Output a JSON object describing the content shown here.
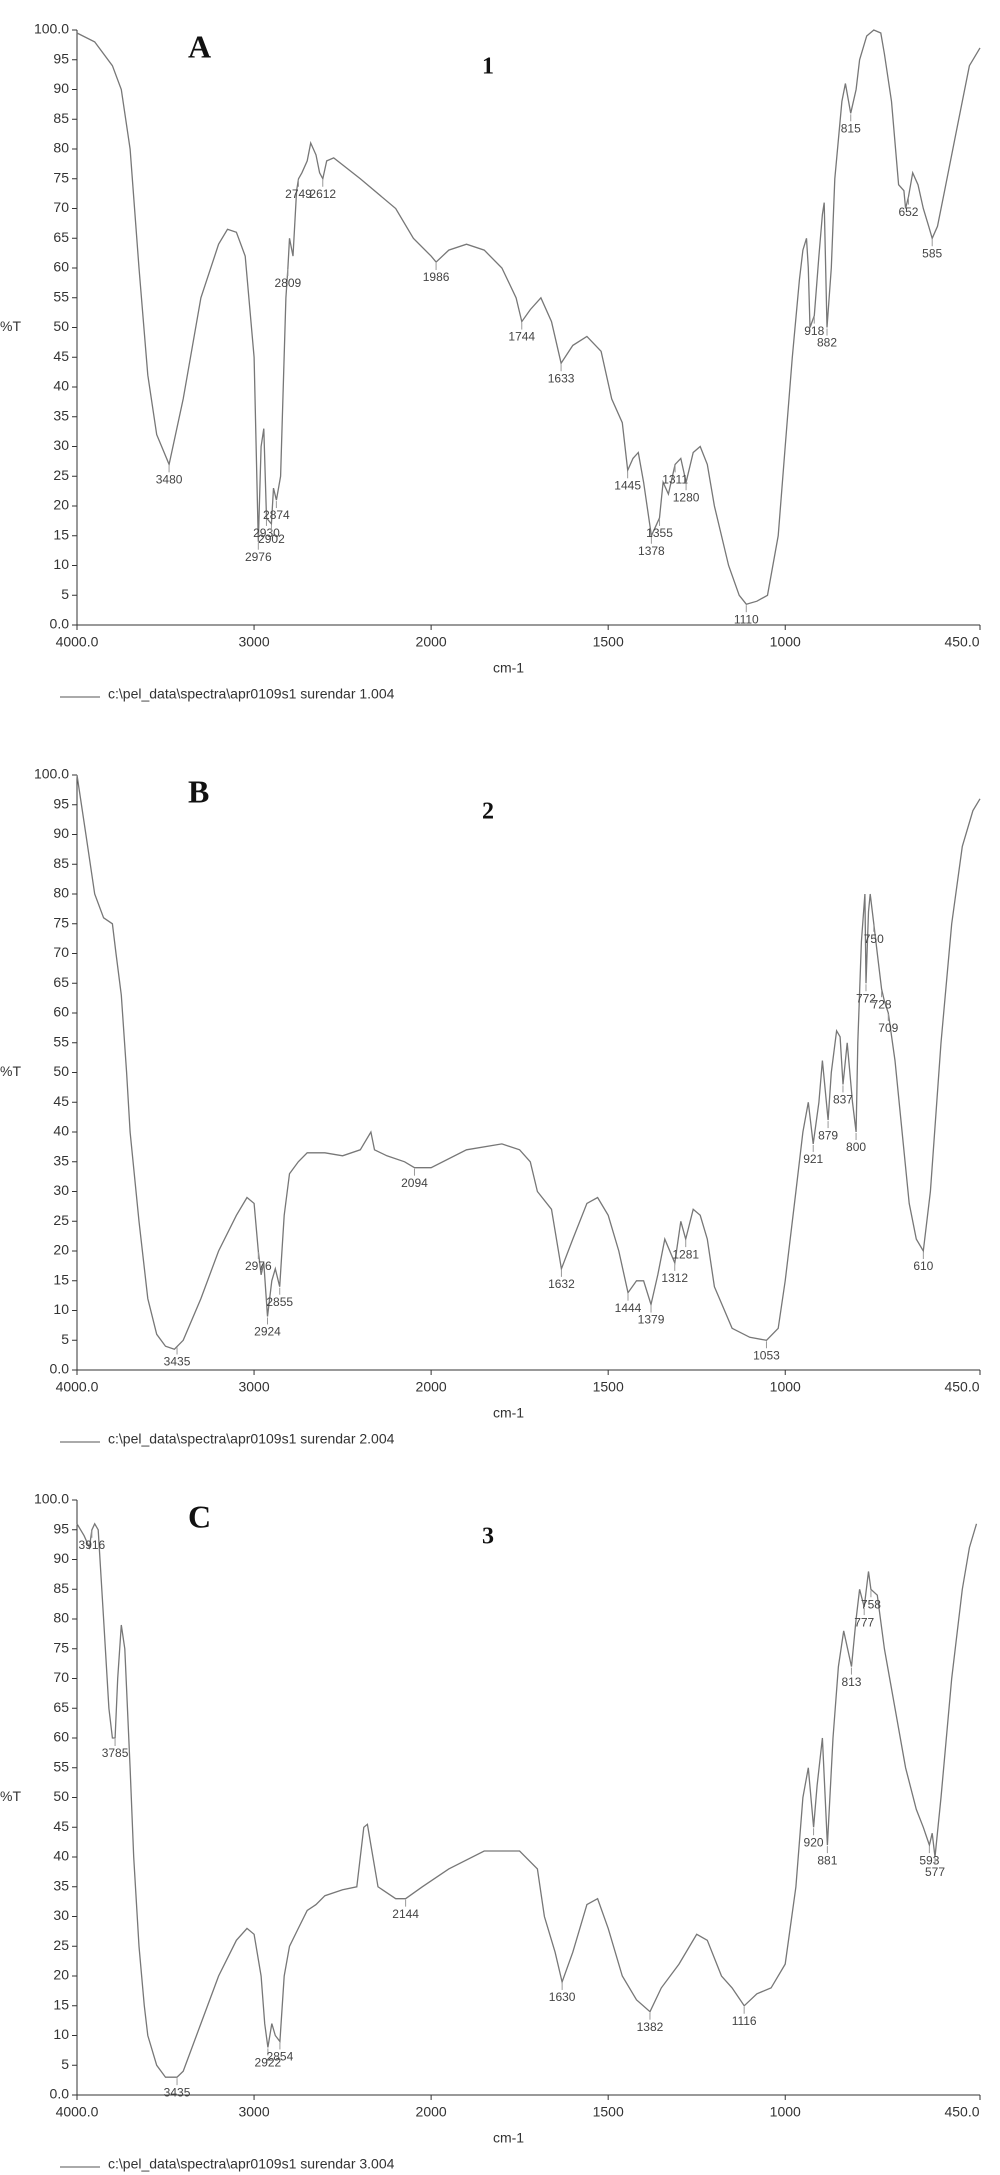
{
  "chart_data": [
    {
      "type": "line",
      "panel_label": "A",
      "title": "1",
      "ylabel": "%T",
      "xlabel": "cm-1",
      "xlim": [
        4000,
        450
      ],
      "ylim": [
        0,
        100
      ],
      "xbreak": 2000,
      "xticks": [
        {
          "value": 4000,
          "label": "4000.0"
        },
        3000,
        2000,
        1500,
        1000,
        {
          "value": 450,
          "label": "450.0"
        }
      ],
      "yticks": [
        {
          "value": 0,
          "label": "0.0"
        },
        5,
        10,
        15,
        20,
        25,
        30,
        35,
        40,
        45,
        50,
        55,
        60,
        65,
        70,
        75,
        80,
        85,
        90,
        95,
        {
          "value": 100,
          "label": "100.0"
        }
      ],
      "x": [
        4000,
        3900,
        3800,
        3750,
        3700,
        3650,
        3600,
        3550,
        3480,
        3400,
        3300,
        3200,
        3150,
        3100,
        3050,
        3000,
        2976,
        2960,
        2945,
        2930,
        2902,
        2890,
        2874,
        2850,
        2820,
        2809,
        2800,
        2780,
        2760,
        2749,
        2730,
        2700,
        2680,
        2650,
        2630,
        2612,
        2590,
        2550,
        2400,
        2200,
        2100,
        2000,
        1986,
        1950,
        1900,
        1850,
        1800,
        1760,
        1744,
        1720,
        1690,
        1660,
        1633,
        1600,
        1560,
        1520,
        1490,
        1460,
        1445,
        1430,
        1415,
        1400,
        1378,
        1355,
        1345,
        1330,
        1311,
        1295,
        1280,
        1260,
        1240,
        1220,
        1200,
        1160,
        1130,
        1110,
        1080,
        1050,
        1020,
        1000,
        980,
        960,
        950,
        940,
        935,
        930,
        918,
        905,
        895,
        890,
        882,
        870,
        860,
        840,
        830,
        815,
        800,
        790,
        770,
        750,
        730,
        720,
        700,
        680,
        665,
        660,
        652,
        640,
        625,
        610,
        595,
        585,
        570,
        550,
        520,
        500,
        480,
        460,
        450
      ],
      "peaks": [
        3480,
        2976,
        2930,
        2902,
        2874,
        2809,
        2749,
        2612,
        1986,
        1744,
        1633,
        1445,
        1378,
        1355,
        1311,
        1280,
        1110,
        918,
        882,
        815,
        652,
        585
      ],
      "series": [
        {
          "name": "c:\\pel_data\\spectra\\apr0109s1 surendar 1.004",
          "color": "#777777",
          "values": [
            99.5,
            98,
            94,
            90,
            80,
            60,
            42,
            32,
            27,
            38,
            55,
            64,
            66.5,
            66,
            62,
            45,
            14,
            30,
            33,
            18,
            17,
            23,
            21,
            25,
            55,
            60,
            65,
            62,
            73,
            75,
            76,
            78,
            81,
            79,
            76,
            75,
            78,
            78.5,
            75,
            70,
            65,
            62,
            61,
            63,
            64,
            63,
            60,
            55,
            51,
            53,
            55,
            51,
            44,
            47,
            48.5,
            46,
            38,
            34,
            26,
            28,
            29,
            24,
            15,
            18,
            24,
            22,
            27,
            28,
            24,
            29,
            30,
            27,
            20,
            10,
            5,
            3.5,
            4,
            5,
            15,
            30,
            45,
            58,
            63,
            65,
            60,
            50,
            52,
            62,
            69,
            71,
            50,
            60,
            75,
            88,
            91,
            86,
            90,
            95,
            99,
            100,
            99.5,
            96,
            88,
            74,
            73,
            70,
            72,
            76,
            74,
            70,
            67,
            65,
            67,
            73,
            82,
            88,
            94,
            96,
            97
          ]
        }
      ]
    },
    {
      "type": "line",
      "panel_label": "B",
      "title": "2",
      "ylabel": "%T",
      "xlabel": "cm-1",
      "xlim": [
        4000,
        450
      ],
      "ylim": [
        0,
        100
      ],
      "xbreak": 2000,
      "xticks": [
        {
          "value": 4000,
          "label": "4000.0"
        },
        3000,
        2000,
        1500,
        1000,
        {
          "value": 450,
          "label": "450.0"
        }
      ],
      "yticks": [
        {
          "value": 0,
          "label": "0.0"
        },
        5,
        10,
        15,
        20,
        25,
        30,
        35,
        40,
        45,
        50,
        55,
        60,
        65,
        70,
        75,
        80,
        85,
        90,
        95,
        {
          "value": 100,
          "label": "100.0"
        }
      ],
      "x": [
        4000,
        3950,
        3900,
        3850,
        3800,
        3780,
        3750,
        3720,
        3700,
        3650,
        3600,
        3550,
        3500,
        3450,
        3400,
        3300,
        3200,
        3100,
        3040,
        3000,
        2976,
        2960,
        2945,
        2924,
        2900,
        2880,
        2855,
        2830,
        2800,
        2750,
        2700,
        2600,
        2500,
        2400,
        2340,
        2320,
        2250,
        2150,
        2094,
        2000,
        1900,
        1800,
        1750,
        1720,
        1700,
        1660,
        1632,
        1600,
        1560,
        1530,
        1500,
        1470,
        1444,
        1420,
        1400,
        1379,
        1360,
        1340,
        1312,
        1295,
        1281,
        1260,
        1240,
        1220,
        1200,
        1150,
        1100,
        1053,
        1020,
        1000,
        970,
        950,
        935,
        921,
        905,
        895,
        879,
        870,
        855,
        845,
        837,
        825,
        810,
        800,
        795,
        785,
        775,
        772,
        765,
        760,
        750,
        740,
        728,
        720,
        709,
        690,
        670,
        650,
        630,
        610,
        590,
        560,
        530,
        500,
        470,
        450
      ],
      "peaks": [
        3435,
        2976,
        2924,
        2855,
        2094,
        1632,
        1444,
        1379,
        1312,
        1281,
        1053,
        921,
        879,
        837,
        800,
        772,
        750,
        728,
        709,
        610
      ],
      "series": [
        {
          "name": "c:\\pel_data\\spectra\\apr0109s1 surendar 2.004",
          "color": "#777777",
          "values": [
            100,
            90,
            80,
            76,
            75,
            70,
            63,
            50,
            40,
            25,
            12,
            6,
            4,
            3.5,
            5,
            12,
            20,
            26,
            29,
            28,
            20,
            16,
            18,
            9,
            15,
            17,
            14,
            26,
            33,
            35,
            36.5,
            36.5,
            36,
            37,
            40,
            37,
            36,
            35,
            34,
            34,
            37,
            38,
            37,
            35,
            30,
            27,
            17,
            22,
            28,
            29,
            26,
            20,
            13,
            15,
            15,
            11,
            16,
            22,
            18,
            25,
            22,
            27,
            26,
            22,
            14,
            7,
            5.5,
            5,
            7,
            15,
            30,
            40,
            45,
            38,
            45,
            52,
            42,
            50,
            57,
            56,
            48,
            55,
            45,
            40,
            55,
            72,
            80,
            65,
            77,
            80,
            75,
            70,
            64,
            62,
            60,
            52,
            40,
            28,
            22,
            20,
            30,
            55,
            75,
            88,
            94,
            96
          ]
        }
      ]
    },
    {
      "type": "line",
      "panel_label": "C",
      "title": "3",
      "ylabel": "%T",
      "xlabel": "cm-1",
      "xlim": [
        4000,
        450
      ],
      "ylim": [
        0,
        100
      ],
      "xbreak": 2000,
      "xticks": [
        {
          "value": 4000,
          "label": "4000.0"
        },
        3000,
        2000,
        1500,
        1000,
        {
          "value": 450,
          "label": "450.0"
        }
      ],
      "yticks": [
        {
          "value": 0,
          "label": "0.0"
        },
        5,
        10,
        15,
        20,
        25,
        30,
        35,
        40,
        45,
        50,
        55,
        60,
        65,
        70,
        75,
        80,
        85,
        90,
        95,
        {
          "value": 100,
          "label": "100.0"
        }
      ],
      "x": [
        4000,
        3960,
        3930,
        3916,
        3900,
        3880,
        3850,
        3820,
        3800,
        3785,
        3770,
        3750,
        3730,
        3700,
        3680,
        3650,
        3620,
        3600,
        3550,
        3500,
        3435,
        3400,
        3300,
        3200,
        3100,
        3040,
        3000,
        2960,
        2940,
        2922,
        2900,
        2880,
        2854,
        2830,
        2800,
        2750,
        2700,
        2650,
        2600,
        2500,
        2420,
        2380,
        2360,
        2340,
        2300,
        2200,
        2144,
        2050,
        1950,
        1850,
        1750,
        1700,
        1680,
        1650,
        1630,
        1600,
        1560,
        1530,
        1500,
        1460,
        1420,
        1382,
        1350,
        1300,
        1250,
        1220,
        1180,
        1150,
        1116,
        1080,
        1040,
        1000,
        970,
        950,
        935,
        920,
        910,
        895,
        881,
        865,
        850,
        835,
        813,
        800,
        790,
        777,
        765,
        758,
        740,
        720,
        690,
        660,
        630,
        610,
        593,
        585,
        577,
        560,
        530,
        500,
        480,
        460
      ],
      "peaks": [
        3916,
        3785,
        3435,
        2922,
        2854,
        2144,
        1630,
        1382,
        1116,
        920,
        881,
        813,
        777,
        758,
        593,
        577
      ],
      "series": [
        {
          "name": "c:\\pel_data\\spectra\\apr0109s1 surendar 3.004",
          "color": "#777777",
          "values": [
            96,
            94,
            92,
            95,
            96,
            95,
            80,
            65,
            60,
            60,
            70,
            79,
            75,
            55,
            40,
            25,
            15,
            10,
            5,
            3,
            3,
            4,
            12,
            20,
            26,
            28,
            27,
            20,
            12,
            8,
            12,
            10,
            9,
            20,
            25,
            28,
            31,
            32,
            33.5,
            34.5,
            35,
            45,
            45.5,
            42,
            35,
            33,
            33,
            35,
            38,
            41,
            41,
            38,
            30,
            24,
            19,
            24,
            32,
            33,
            28,
            20,
            16,
            14,
            18,
            22,
            27,
            26,
            20,
            18,
            15,
            17,
            18,
            22,
            35,
            50,
            55,
            45,
            52,
            60,
            42,
            60,
            72,
            78,
            72,
            80,
            85,
            82,
            88,
            85,
            84,
            75,
            65,
            55,
            48,
            45,
            42,
            44,
            40,
            50,
            70,
            85,
            92,
            96
          ]
        }
      ]
    }
  ]
}
